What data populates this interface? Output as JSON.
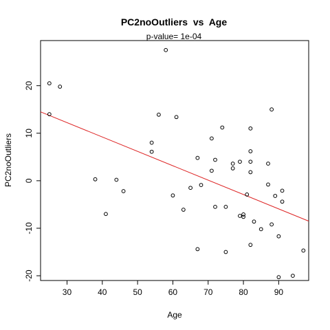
{
  "chart_data": {
    "type": "scatter",
    "title": "PC2noOutliers  vs  Age",
    "subtitle": "p-value= 1e-04",
    "xlabel": "Age",
    "ylabel": "PC2noOutliers",
    "xlim": [
      22.5,
      98.5
    ],
    "ylim": [
      -21.0,
      29.5
    ],
    "x_ticks": [
      30,
      40,
      50,
      60,
      70,
      80,
      90
    ],
    "y_ticks": [
      -20,
      -10,
      0,
      10,
      20
    ],
    "grid": false,
    "colors": {
      "points": "#000000",
      "regression_line": "#dd2222",
      "axes": "#000000"
    },
    "regression_line": {
      "x": [
        22.5,
        98.5
      ],
      "y": [
        14.5,
        -8.5
      ]
    },
    "points": [
      {
        "x": 25,
        "y": 20.5
      },
      {
        "x": 25,
        "y": 14.0
      },
      {
        "x": 28,
        "y": 19.8
      },
      {
        "x": 38,
        "y": 0.3
      },
      {
        "x": 41,
        "y": -7.0
      },
      {
        "x": 44,
        "y": 0.2
      },
      {
        "x": 46,
        "y": -2.2
      },
      {
        "x": 54,
        "y": 8.0
      },
      {
        "x": 54,
        "y": 6.1
      },
      {
        "x": 56,
        "y": 13.9
      },
      {
        "x": 58,
        "y": 27.5
      },
      {
        "x": 60,
        "y": -3.1
      },
      {
        "x": 61,
        "y": 13.4
      },
      {
        "x": 63,
        "y": -6.1
      },
      {
        "x": 65,
        "y": -1.5
      },
      {
        "x": 67,
        "y": 4.8
      },
      {
        "x": 67,
        "y": -14.4
      },
      {
        "x": 68,
        "y": -0.9
      },
      {
        "x": 71,
        "y": 8.9
      },
      {
        "x": 71,
        "y": 2.1
      },
      {
        "x": 72,
        "y": 4.4
      },
      {
        "x": 72,
        "y": -5.5
      },
      {
        "x": 74,
        "y": 11.2
      },
      {
        "x": 75,
        "y": -5.5
      },
      {
        "x": 75,
        "y": -15.0
      },
      {
        "x": 77,
        "y": 3.6
      },
      {
        "x": 77,
        "y": 2.6
      },
      {
        "x": 79,
        "y": 4.0
      },
      {
        "x": 79,
        "y": -7.4
      },
      {
        "x": 80,
        "y": -7.1
      },
      {
        "x": 80,
        "y": -7.6
      },
      {
        "x": 81,
        "y": -2.9
      },
      {
        "x": 82,
        "y": 11.0
      },
      {
        "x": 82,
        "y": 6.2
      },
      {
        "x": 82,
        "y": 4.0
      },
      {
        "x": 82,
        "y": 1.8
      },
      {
        "x": 82,
        "y": -13.5
      },
      {
        "x": 83,
        "y": -8.6
      },
      {
        "x": 85,
        "y": -10.2
      },
      {
        "x": 87,
        "y": 3.6
      },
      {
        "x": 87,
        "y": -0.8
      },
      {
        "x": 88,
        "y": 15.0
      },
      {
        "x": 88,
        "y": -9.2
      },
      {
        "x": 89,
        "y": -3.2
      },
      {
        "x": 90,
        "y": -11.7
      },
      {
        "x": 90,
        "y": -20.3
      },
      {
        "x": 91,
        "y": -2.1
      },
      {
        "x": 91,
        "y": -4.4
      },
      {
        "x": 94,
        "y": -20.0
      },
      {
        "x": 97,
        "y": -14.7
      }
    ]
  }
}
